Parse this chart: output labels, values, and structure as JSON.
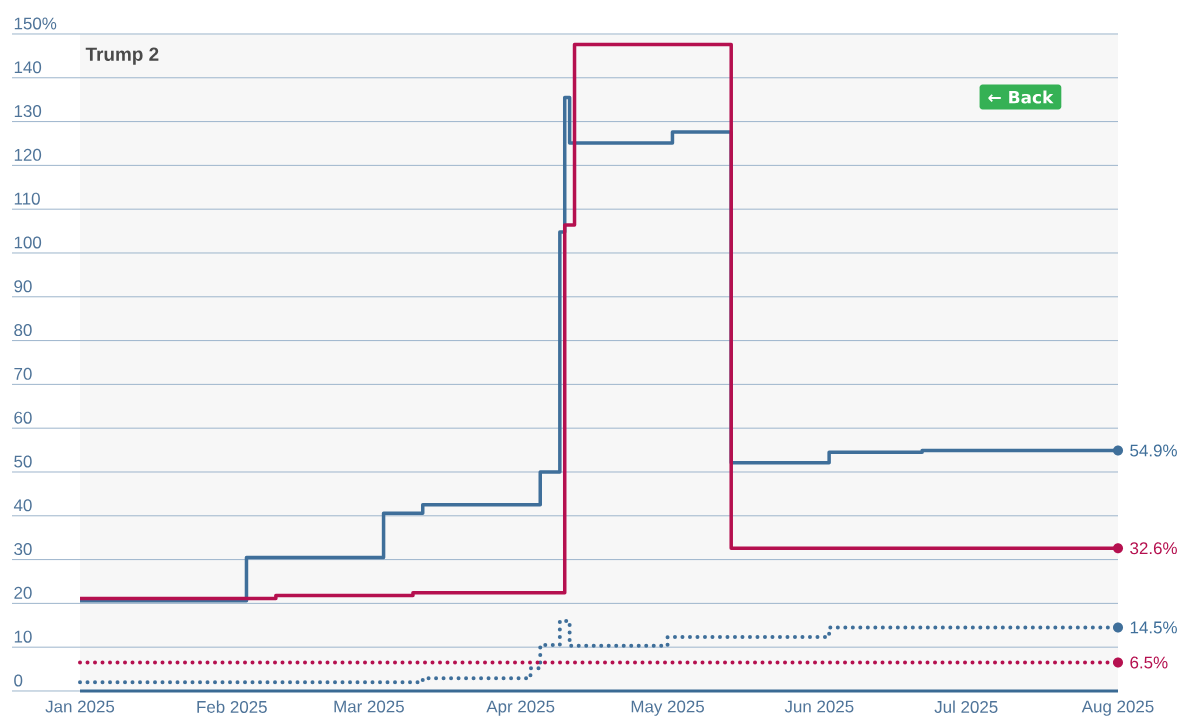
{
  "chart_data": {
    "type": "step",
    "annotations": [
      "Trump 2",
      "← Back"
    ],
    "xlim": [
      "2025-01-01",
      "2025-08-01"
    ],
    "xticks": [
      {
        "value": "2025-01-01",
        "label": "Jan 2025"
      },
      {
        "value": "2025-02-01",
        "label": "Feb 2025"
      },
      {
        "value": "2025-03-01",
        "label": "Mar 2025"
      },
      {
        "value": "2025-04-01",
        "label": "Apr 2025"
      },
      {
        "value": "2025-05-01",
        "label": "May 2025"
      },
      {
        "value": "2025-06-01",
        "label": "Jun 2025"
      },
      {
        "value": "2025-07-01",
        "label": "Jul 2025"
      },
      {
        "value": "2025-08-01",
        "label": "Aug 2025"
      }
    ],
    "ylim": [
      0,
      150
    ],
    "yticks": [
      0,
      10,
      20,
      30,
      40,
      50,
      60,
      70,
      80,
      90,
      100,
      110,
      120,
      130,
      140,
      {
        "value": 150,
        "label": "150%"
      }
    ],
    "grid": "y",
    "ref_lines": [
      {
        "axis": "y",
        "value": 0,
        "color": "#3a6a94"
      }
    ],
    "series": [
      {
        "color": "#3f6f9a",
        "x": [
          "2025-01-01",
          "2025-02-04",
          "2025-03-04",
          "2025-03-12",
          "2025-04-05",
          "2025-04-09",
          "2025-04-10",
          "2025-04-11",
          "2025-05-02",
          "2025-05-14",
          "2025-06-03",
          "2025-06-22",
          "2025-08-01"
        ],
        "values": [
          20.6,
          30.5,
          40.6,
          42.5,
          50.0,
          104.8,
          135.5,
          125.1,
          127.6,
          52.1,
          54.5,
          54.9,
          54.9
        ],
        "value_labels": [
          null,
          null,
          null,
          null,
          null,
          null,
          null,
          null,
          null,
          null,
          null,
          null,
          "54.9%"
        ]
      },
      {
        "color": "#b5104f",
        "x": [
          "2025-01-01",
          "2025-02-10",
          "2025-03-10",
          "2025-04-10",
          "2025-04-12",
          "2025-05-14",
          "2025-08-01"
        ],
        "values": [
          21.1,
          21.8,
          22.4,
          106.4,
          147.6,
          32.6,
          32.6
        ],
        "value_labels": [
          null,
          null,
          null,
          null,
          null,
          null,
          "32.6%"
        ]
      },
      {
        "color": "#3f6f9a",
        "line_style": "dotted",
        "x": [
          "2025-01-01",
          "2025-03-12",
          "2025-04-03",
          "2025-04-05",
          "2025-04-09",
          "2025-04-11",
          "2025-05-01",
          "2025-06-03",
          "2025-08-01"
        ],
        "values": [
          2.0,
          2.9,
          5.2,
          10.5,
          16.0,
          10.3,
          12.3,
          14.5,
          14.5
        ],
        "value_labels": [
          null,
          null,
          null,
          null,
          null,
          null,
          null,
          null,
          "14.5%"
        ]
      },
      {
        "color": "#b5104f",
        "line_style": "dotted",
        "x": [
          "2025-01-01",
          "2025-08-01"
        ],
        "values": [
          6.5,
          6.5
        ],
        "value_labels": [
          null,
          "6.5%"
        ]
      }
    ]
  }
}
